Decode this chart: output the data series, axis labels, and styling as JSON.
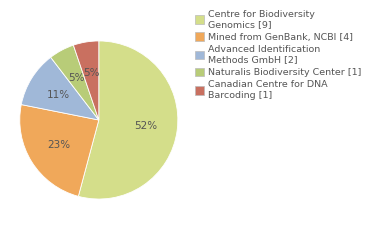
{
  "labels": [
    "Centre for Biodiversity\nGenomics [9]",
    "Mined from GenBank, NCBI [4]",
    "Advanced Identification\nMethods GmbH [2]",
    "Naturalis Biodiversity Center [1]",
    "Canadian Centre for DNA\nBarcoding [1]"
  ],
  "values": [
    52,
    23,
    11,
    5,
    5
  ],
  "colors": [
    "#d4de8a",
    "#f0a85a",
    "#a0b8d8",
    "#b8cc78",
    "#c97060"
  ],
  "pct_labels": [
    "52%",
    "23%",
    "11%",
    "5%",
    "5%"
  ],
  "background_color": "#ffffff",
  "text_color": "#555555",
  "label_fontsize": 7.5,
  "legend_fontsize": 6.8
}
